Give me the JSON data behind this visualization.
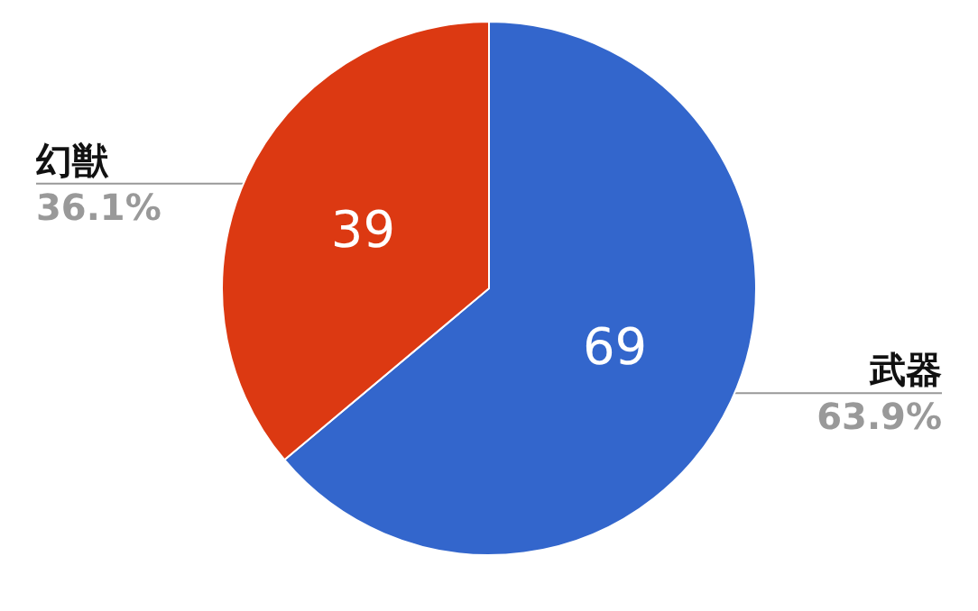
{
  "chart_data": {
    "type": "pie",
    "categories": [
      "武器",
      "幻獣"
    ],
    "values": [
      69,
      39
    ],
    "colors": [
      "#3366cc",
      "#dc3912"
    ],
    "data_labels": true,
    "annotations": [
      "63.9%",
      "36.1%"
    ],
    "legend": false
  }
}
